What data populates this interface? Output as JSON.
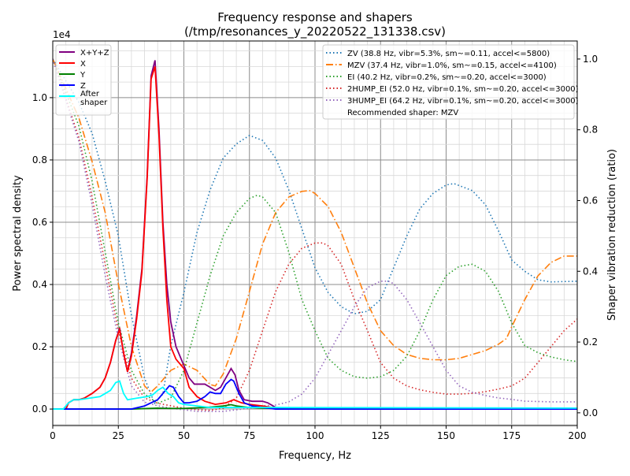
{
  "chart_data": {
    "type": "line",
    "title": "Frequency response and shapers",
    "subtitle": "(/tmp/resonances_y_20220522_131338.csv)",
    "xlabel": "Frequency, Hz",
    "ylabel": "Power spectral density",
    "ylabel_right": "Shaper vibration reduction (ratio)",
    "y_offset_label": "1e4",
    "xlim": [
      0,
      200
    ],
    "ylim": [
      -0.053,
      1.182
    ],
    "ylim_right": [
      -0.036,
      1.051
    ],
    "x_ticks": [
      "0",
      "25",
      "50",
      "75",
      "100",
      "125",
      "150",
      "175",
      "200"
    ],
    "x_tick_values": [
      0,
      25,
      50,
      75,
      100,
      125,
      150,
      175,
      200
    ],
    "y_ticks": [
      "0.0",
      "0.2",
      "0.4",
      "0.6",
      "0.8",
      "1.0"
    ],
    "y_tick_values": [
      0,
      0.2,
      0.4,
      0.6,
      0.8,
      1.0
    ],
    "y_right_ticks": [
      "0.0",
      "0.2",
      "0.4",
      "0.6",
      "0.8",
      "1.0"
    ],
    "y_right_tick_values": [
      0,
      0.2,
      0.4,
      0.6,
      0.8,
      1.0
    ],
    "grid": true,
    "legend_left_placement": "top-left",
    "legend_right_placement": "top-right",
    "psd_series": [
      {
        "name": "X+Y+Z",
        "color": "#800080",
        "x": [
          0,
          5,
          6,
          8,
          10,
          12,
          15,
          18,
          20,
          22,
          24,
          25.5,
          27,
          28.5,
          30,
          32,
          34,
          36,
          37.5,
          39,
          40.5,
          42,
          43.5,
          45,
          47,
          50,
          52,
          54,
          56,
          58,
          60,
          62,
          64,
          66,
          68,
          69.5,
          71,
          73,
          76,
          80,
          82,
          85,
          90,
          200
        ],
        "y": [
          0,
          0,
          0.02,
          0.03,
          0.03,
          0.035,
          0.05,
          0.07,
          0.1,
          0.15,
          0.22,
          0.26,
          0.18,
          0.12,
          0.18,
          0.3,
          0.45,
          0.75,
          1.07,
          1.12,
          0.9,
          0.6,
          0.4,
          0.28,
          0.2,
          0.14,
          0.1,
          0.08,
          0.08,
          0.08,
          0.07,
          0.06,
          0.07,
          0.1,
          0.13,
          0.11,
          0.06,
          0.03,
          0.025,
          0.025,
          0.02,
          0.005,
          0.002,
          0
        ]
      },
      {
        "name": "X",
        "color": "#ff0000",
        "x": [
          0,
          5,
          6,
          8,
          10,
          12,
          15,
          18,
          20,
          22,
          24,
          25.5,
          27,
          28.5,
          30,
          32,
          34,
          36,
          37.5,
          39,
          40.5,
          42,
          43.5,
          45,
          47,
          50,
          52,
          55,
          58,
          62,
          66,
          69,
          72,
          75,
          80,
          85,
          90,
          200
        ],
        "y": [
          0,
          0,
          0.02,
          0.03,
          0.03,
          0.035,
          0.05,
          0.07,
          0.1,
          0.15,
          0.22,
          0.255,
          0.18,
          0.12,
          0.17,
          0.29,
          0.44,
          0.74,
          1.06,
          1.1,
          0.88,
          0.58,
          0.35,
          0.2,
          0.16,
          0.13,
          0.07,
          0.04,
          0.025,
          0.015,
          0.02,
          0.03,
          0.02,
          0.015,
          0.01,
          0.003,
          0.001,
          0
        ]
      },
      {
        "name": "Y",
        "color": "#008000",
        "x": [
          0,
          30,
          40,
          45,
          50,
          55,
          60,
          65,
          68,
          70,
          75,
          80,
          90,
          200
        ],
        "y": [
          0,
          0,
          0.003,
          0.002,
          0.002,
          0.004,
          0.006,
          0.01,
          0.014,
          0.01,
          0.005,
          0.003,
          0.001,
          0
        ]
      },
      {
        "name": "Z",
        "color": "#0000ff",
        "x": [
          0,
          30,
          35,
          40,
          43,
          44.5,
          46,
          48,
          50,
          52,
          55,
          58,
          60,
          62,
          64,
          66,
          68,
          69,
          71,
          73,
          76,
          80,
          85,
          200
        ],
        "y": [
          0,
          0,
          0.01,
          0.03,
          0.06,
          0.075,
          0.07,
          0.04,
          0.02,
          0.02,
          0.025,
          0.04,
          0.055,
          0.05,
          0.05,
          0.08,
          0.095,
          0.09,
          0.05,
          0.02,
          0.01,
          0.005,
          0,
          0
        ]
      },
      {
        "name": "After\nshaper",
        "label_lines": [
          "After",
          "shaper"
        ],
        "color": "#00ffff",
        "x": [
          0,
          4,
          6,
          8,
          10,
          14,
          18,
          20,
          22,
          24,
          25.5,
          27,
          28.5,
          32,
          36,
          38,
          40,
          42,
          44,
          46,
          48,
          50,
          55,
          60,
          80,
          200
        ],
        "y": [
          0,
          0,
          0.02,
          0.03,
          0.03,
          0.035,
          0.04,
          0.05,
          0.06,
          0.085,
          0.09,
          0.05,
          0.03,
          0.035,
          0.04,
          0.045,
          0.06,
          0.07,
          0.05,
          0.04,
          0.02,
          0.015,
          0.01,
          0.005,
          0.005,
          0.003
        ]
      }
    ],
    "shaper_series": [
      {
        "name": "ZV (38.8 Hz, vibr=5.3%, sm~=0.11, accel<=5800)",
        "color": "#1f77b4",
        "dash": "dot",
        "x": [
          0,
          10,
          15,
          20,
          25,
          30,
          35,
          38.8,
          42,
          45,
          50,
          55,
          60,
          65,
          70,
          75,
          80,
          85,
          90,
          95,
          100,
          105,
          110,
          115,
          120,
          125,
          130,
          135,
          140,
          145,
          150,
          153,
          160,
          165,
          170,
          175,
          180,
          185,
          190,
          200
        ],
        "y": [
          1.0,
          0.877,
          0.79,
          0.655,
          0.5,
          0.276,
          0.098,
          0.027,
          0.053,
          0.19,
          0.34,
          0.51,
          0.63,
          0.72,
          0.76,
          0.784,
          0.77,
          0.72,
          0.63,
          0.52,
          0.41,
          0.34,
          0.3,
          0.28,
          0.287,
          0.32,
          0.41,
          0.5,
          0.577,
          0.62,
          0.644,
          0.648,
          0.628,
          0.588,
          0.514,
          0.432,
          0.4,
          0.376,
          0.37,
          0.372
        ]
      },
      {
        "name": "MZV (37.4 Hz, vibr=1.0%, sm~=0.15, accel<=4100)",
        "color": "#ff7f0e",
        "dash": "dashdot",
        "x": [
          0,
          10,
          15,
          20,
          25,
          30,
          35,
          37.4,
          40,
          45,
          50,
          55,
          60,
          62,
          65,
          70,
          75,
          80,
          85,
          90,
          95,
          98,
          100,
          105,
          110,
          115,
          120,
          125,
          130,
          135,
          140,
          145,
          150,
          155,
          160,
          165,
          170,
          173,
          175,
          180,
          185,
          190,
          195,
          200
        ],
        "y": [
          1.0,
          0.833,
          0.71,
          0.566,
          0.365,
          0.187,
          0.076,
          0.058,
          0.076,
          0.12,
          0.138,
          0.12,
          0.08,
          0.076,
          0.11,
          0.21,
          0.343,
          0.477,
          0.566,
          0.61,
          0.626,
          0.628,
          0.62,
          0.583,
          0.51,
          0.41,
          0.31,
          0.232,
          0.19,
          0.165,
          0.154,
          0.15,
          0.15,
          0.154,
          0.165,
          0.176,
          0.194,
          0.21,
          0.243,
          0.32,
          0.387,
          0.425,
          0.443,
          0.443
        ]
      },
      {
        "name": "EI (40.2 Hz, vibr=0.2%, sm~=0.20, accel<=3000)",
        "color": "#2ca02c",
        "dash": "dot",
        "x": [
          0,
          10,
          15,
          20,
          25,
          30,
          35,
          40,
          45,
          50,
          55,
          60,
          65,
          70,
          75,
          78,
          80,
          85,
          90,
          95,
          100,
          105,
          110,
          115,
          120,
          125,
          130,
          135,
          140,
          145,
          150,
          155,
          160,
          165,
          170,
          175,
          180,
          185,
          190,
          195,
          200
        ],
        "y": [
          1.0,
          0.81,
          0.655,
          0.454,
          0.254,
          0.12,
          0.053,
          0.027,
          0.042,
          0.12,
          0.254,
          0.388,
          0.5,
          0.566,
          0.606,
          0.615,
          0.61,
          0.566,
          0.454,
          0.32,
          0.232,
          0.154,
          0.12,
          0.102,
          0.098,
          0.102,
          0.12,
          0.16,
          0.232,
          0.32,
          0.388,
          0.414,
          0.42,
          0.4,
          0.343,
          0.254,
          0.19,
          0.17,
          0.158,
          0.15,
          0.145
        ]
      },
      {
        "name": "2HUMP_EI (52.0 Hz, vibr=0.1%, sm~=0.20, accel<=3000)",
        "color": "#d62728",
        "dash": "dot",
        "x": [
          0,
          10,
          15,
          20,
          25,
          30,
          35,
          40,
          45,
          50,
          55,
          60,
          65,
          70,
          75,
          80,
          85,
          90,
          95,
          100,
          103,
          105,
          110,
          115,
          120,
          125,
          130,
          135,
          140,
          145,
          150,
          155,
          160,
          165,
          170,
          175,
          180,
          185,
          190,
          195,
          200
        ],
        "y": [
          1.0,
          0.777,
          0.61,
          0.42,
          0.232,
          0.098,
          0.042,
          0.027,
          0.02,
          0.013,
          0.009,
          0.007,
          0.013,
          0.042,
          0.12,
          0.232,
          0.343,
          0.42,
          0.465,
          0.48,
          0.48,
          0.472,
          0.42,
          0.32,
          0.232,
          0.142,
          0.098,
          0.076,
          0.065,
          0.058,
          0.053,
          0.053,
          0.055,
          0.06,
          0.067,
          0.076,
          0.098,
          0.142,
          0.187,
          0.232,
          0.265
        ]
      },
      {
        "name": "3HUMP_EI (64.2 Hz, vibr=0.1%, sm~=0.20, accel<=3000)",
        "color": "#9467bd",
        "dash": "dot",
        "x": [
          0,
          10,
          15,
          20,
          25,
          30,
          35,
          40,
          45,
          55,
          65,
          75,
          80,
          85,
          90,
          95,
          100,
          105,
          110,
          115,
          120,
          125,
          128,
          130,
          135,
          140,
          145,
          150,
          155,
          160,
          165,
          170,
          175,
          180,
          190,
          200
        ],
        "y": [
          1.0,
          0.766,
          0.588,
          0.388,
          0.21,
          0.076,
          0.03,
          0.02,
          0.013,
          0.004,
          0.004,
          0.013,
          0.02,
          0.022,
          0.031,
          0.053,
          0.098,
          0.165,
          0.232,
          0.3,
          0.354,
          0.372,
          0.372,
          0.365,
          0.32,
          0.254,
          0.187,
          0.12,
          0.076,
          0.058,
          0.049,
          0.042,
          0.038,
          0.033,
          0.031,
          0.031
        ]
      }
    ],
    "recommendation": "Recommended shaper: MZV"
  }
}
